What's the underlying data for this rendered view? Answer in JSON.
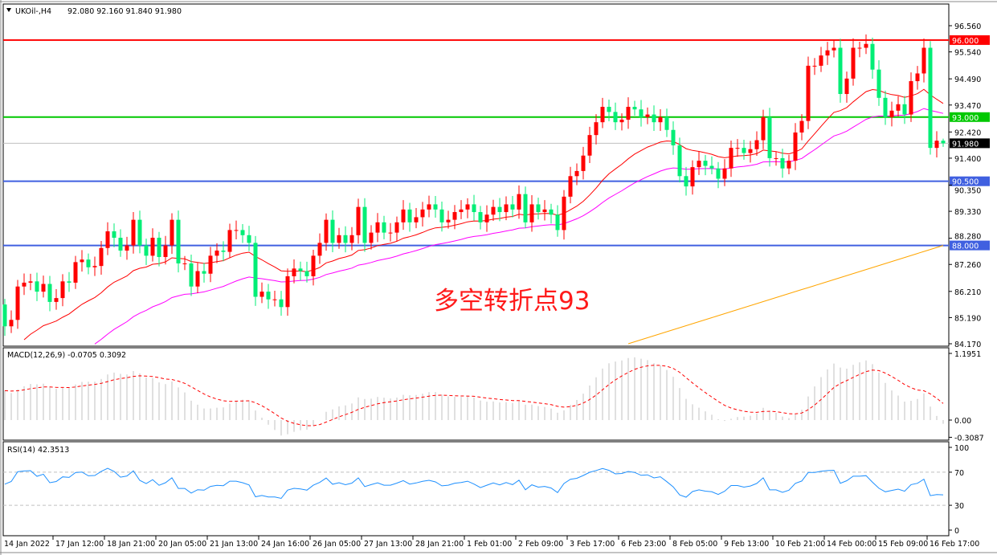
{
  "chart_data": {
    "type": "candlestick",
    "header": {
      "symbol": "UKOil-,H4",
      "ohlc": "92.080 92.160 91.840 91.980",
      "open": 92.08,
      "high": 92.16,
      "low": 91.84,
      "close": 91.98
    },
    "annotation": "多空转折点93",
    "first_open": 85.7,
    "close": [
      84.85,
      85.1,
      86.4,
      86.55,
      86.6,
      86.2,
      86.5,
      85.8,
      85.95,
      86.6,
      86.55,
      87.35,
      87.45,
      87.15,
      87.2,
      87.9,
      88.55,
      88.3,
      87.8,
      88.0,
      89.0,
      88.0,
      87.6,
      88.3,
      87.55,
      88.0,
      89.0,
      87.3,
      87.3,
      86.4,
      87.0,
      86.9,
      87.6,
      87.8,
      87.75,
      88.6,
      88.6,
      88.4,
      88.1,
      86.0,
      86.2,
      85.9,
      85.9,
      85.6,
      86.8,
      87.1,
      87.0,
      86.8,
      87.6,
      88.1,
      89.0,
      88.1,
      88.4,
      88.1,
      88.4,
      89.5,
      88.1,
      88.5,
      88.9,
      88.5,
      88.5,
      88.9,
      89.4,
      88.9,
      89.1,
      89.4,
      89.6,
      89.4,
      88.9,
      89.0,
      89.3,
      89.4,
      89.6,
      89.3,
      88.9,
      89.2,
      89.5,
      89.3,
      89.6,
      89.4,
      90.0,
      88.9,
      89.6,
      89.3,
      89.4,
      89.2,
      88.6,
      89.9,
      90.7,
      90.9,
      91.5,
      92.3,
      92.8,
      93.4,
      93.2,
      92.8,
      92.9,
      93.4,
      93.3,
      93.0,
      93.1,
      92.8,
      93.0,
      92.5,
      91.9,
      90.7,
      90.3,
      91.05,
      91.3,
      91.1,
      91.0,
      90.6,
      91.0,
      91.8,
      91.8,
      91.6,
      91.75,
      92.1,
      93.0,
      91.4,
      91.4,
      91.0,
      91.3,
      92.4,
      92.85,
      95.0,
      95.0,
      95.4,
      95.6,
      95.7,
      93.9,
      94.5,
      95.7,
      95.7,
      95.85,
      94.85,
      93.75,
      93.0,
      93.25,
      93.5,
      93.1,
      94.4,
      94.7,
      95.7,
      91.8,
      92.08,
      91.98
    ],
    "price_axis": {
      "ylim": [
        84.17,
        96.56
      ],
      "ticks": [
        "96.560",
        "95.540",
        "94.490",
        "93.470",
        "92.420",
        "91.400",
        "90.350",
        "89.330",
        "88.280",
        "87.260",
        "86.210",
        "85.190",
        "84.170"
      ]
    },
    "levels": [
      {
        "price": 96.0,
        "label": "96.000",
        "color": "#ff0000"
      },
      {
        "price": 93.0,
        "label": "93.000",
        "color": "#00c800"
      },
      {
        "price": 90.5,
        "label": "90.500",
        "color": "#4060e0"
      },
      {
        "price": 88.0,
        "label": "88.000",
        "color": "#4060e0"
      }
    ],
    "current_price": {
      "price": 91.98,
      "label": "91.980",
      "color": "#000000"
    },
    "colors": {
      "up": "#ff0000",
      "down": "#00ee76",
      "ma_fast": "#ff0000",
      "ma_slow": "#ff00ff",
      "ma_long": "#ffa500",
      "macd_hist": "#c0c0c0",
      "macd_signal": "#ff0000",
      "rsi": "#1e90ff"
    },
    "macd": {
      "label": "MACD(12,26,9) -0.0705 0.3092",
      "ylim": [
        -0.3087,
        1.1951
      ],
      "ticks": [
        "1.1951",
        "0.00",
        "-0.3087"
      ]
    },
    "rsi": {
      "label": "RSI(14) 42.3513",
      "ylim": [
        0,
        100
      ],
      "levels": [
        70,
        30
      ],
      "ticks": [
        "100",
        "70",
        "30",
        "0"
      ]
    },
    "time_axis": [
      "14 Jan 2022",
      "17 Jan 12:00",
      "18 Jan 21:00",
      "20 Jan 05:00",
      "21 Jan 13:00",
      "24 Jan 16:00",
      "26 Jan 05:00",
      "27 Jan 13:00",
      "28 Jan 21:00",
      "1 Feb 01:00",
      "2 Feb 09:00",
      "3 Feb 17:00",
      "6 Feb 23:00",
      "8 Feb 05:00",
      "9 Feb 13:00",
      "10 Feb 21:00",
      "14 Feb 00:00",
      "15 Feb 09:00",
      "16 Feb 17:00"
    ]
  }
}
